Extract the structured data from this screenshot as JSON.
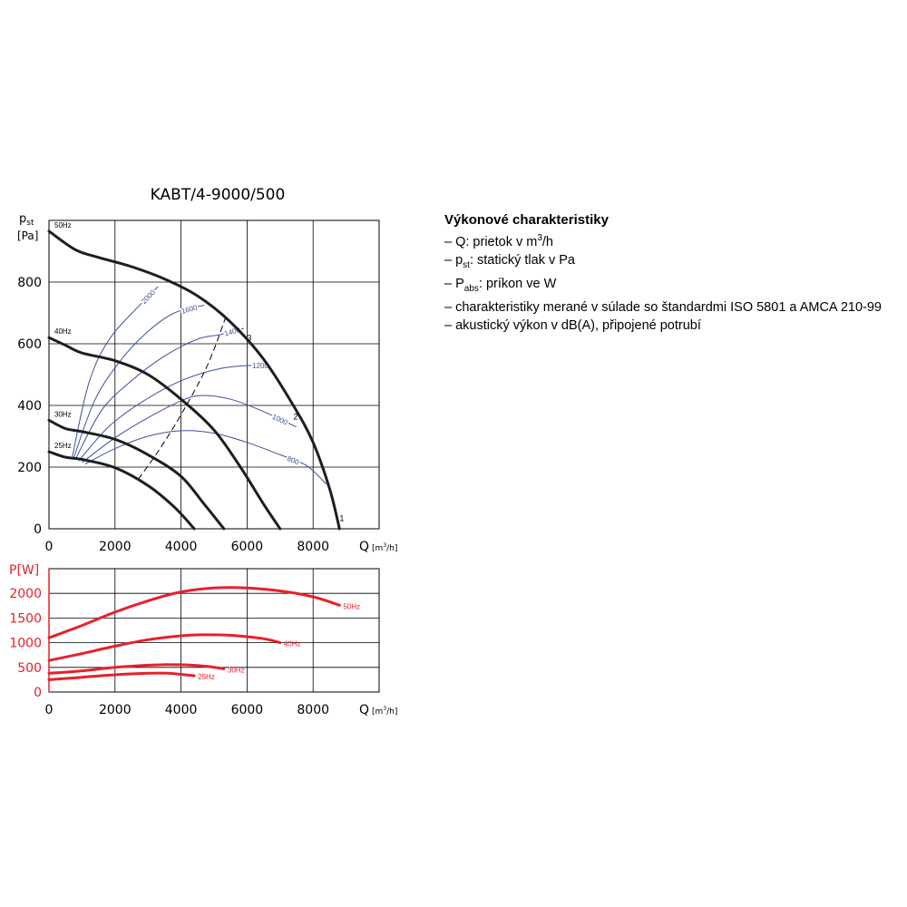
{
  "colors": {
    "main_curve": "#1e1e1e",
    "power_curve": "#e8202a",
    "isoline": "#3f4f9e",
    "grid": "#000000",
    "power_axis": "#e8202a"
  },
  "title": "KABT/4-9000/500",
  "legend": {
    "heading": "Výkonové charakteristiky",
    "items": [
      {
        "prefix": "– ",
        "symbol": "Q",
        "sub": "",
        "text_before_sup": ": prietok v m",
        "sup": "3",
        "text_after_sup": "/h"
      },
      {
        "prefix": "– ",
        "symbol": "p",
        "sub": "st",
        "text_before_sup": ": statický tlak v Pa",
        "sup": "",
        "text_after_sup": ""
      },
      {
        "prefix": "– ",
        "symbol": "P",
        "sub": "abs",
        "text_before_sup": ": príkon ve W",
        "sup": "",
        "text_after_sup": ""
      },
      {
        "prefix": "– ",
        "symbol": "",
        "sub": "",
        "text_before_sup": "charakteristiky merané v súlade so štandardmi ISO 5801 a AMCA 210-99",
        "sup": "",
        "text_after_sup": ""
      },
      {
        "prefix": "– ",
        "symbol": "",
        "sub": "",
        "text_before_sup": "akustický výkon v dB(A), připojené potrubí",
        "sup": "",
        "text_after_sup": ""
      }
    ]
  },
  "chart_data": [
    {
      "type": "line",
      "title": "KABT/4-9000/500",
      "ylabel_symbol": "p",
      "ylabel_sub": "st",
      "ylabel_unit": "[Pa]",
      "xlabel_symbol": "Q",
      "xlabel_unit_before_sup": "[m",
      "xlabel_sup": "3",
      "xlabel_unit_after_sup": "/h]",
      "xlim": [
        0,
        10000
      ],
      "ylim": [
        0,
        1000
      ],
      "xticks": [
        0,
        2000,
        4000,
        6000,
        8000
      ],
      "yticks": [
        0,
        200,
        400,
        600,
        800
      ],
      "grid": true,
      "series": [
        {
          "name": "50Hz",
          "points": [
            [
              0,
              965
            ],
            [
              800,
              905
            ],
            [
              1500,
              880
            ],
            [
              2500,
              850
            ],
            [
              3500,
              810
            ],
            [
              4500,
              755
            ],
            [
              5500,
              670
            ],
            [
              6500,
              550
            ],
            [
              7400,
              400
            ],
            [
              8000,
              280
            ],
            [
              8500,
              130
            ],
            [
              8800,
              0
            ]
          ]
        },
        {
          "name": "40Hz",
          "points": [
            [
              0,
              620
            ],
            [
              500,
              595
            ],
            [
              1000,
              570
            ],
            [
              2000,
              545
            ],
            [
              3000,
              500
            ],
            [
              4000,
              420
            ],
            [
              5000,
              320
            ],
            [
              5800,
              200
            ],
            [
              6500,
              80
            ],
            [
              7000,
              0
            ]
          ]
        },
        {
          "name": "30Hz",
          "points": [
            [
              0,
              352
            ],
            [
              500,
              325
            ],
            [
              1000,
              315
            ],
            [
              2000,
              290
            ],
            [
              3000,
              240
            ],
            [
              4000,
              170
            ],
            [
              4700,
              80
            ],
            [
              5300,
              0
            ]
          ]
        },
        {
          "name": "25Hz",
          "points": [
            [
              0,
              250
            ],
            [
              500,
              232
            ],
            [
              1000,
              225
            ],
            [
              2000,
              198
            ],
            [
              3000,
              140
            ],
            [
              3800,
              70
            ],
            [
              4400,
              0
            ]
          ]
        }
      ],
      "iso_power_lines": [
        {
          "label": "2000",
          "points": [
            [
              700,
              230
            ],
            [
              1200,
              470
            ],
            [
              1800,
              610
            ],
            [
              2700,
              720
            ],
            [
              3300,
              785
            ]
          ]
        },
        {
          "label": "1600",
          "points": [
            [
              750,
              230
            ],
            [
              1400,
              420
            ],
            [
              2200,
              550
            ],
            [
              3000,
              640
            ],
            [
              3800,
              700
            ],
            [
              4700,
              725
            ]
          ]
        },
        {
          "label": "1400",
          "points": [
            [
              800,
              225
            ],
            [
              1600,
              385
            ],
            [
              2500,
              480
            ],
            [
              3500,
              560
            ],
            [
              4500,
              615
            ],
            [
              5200,
              630
            ],
            [
              5900,
              650
            ]
          ]
        },
        {
          "label": "1200",
          "points": [
            [
              900,
              220
            ],
            [
              1800,
              330
            ],
            [
              2800,
              410
            ],
            [
              4000,
              480
            ],
            [
              5200,
              520
            ],
            [
              6200,
              530
            ],
            [
              6600,
              530
            ]
          ]
        },
        {
          "label": "1000",
          "points": [
            [
              1000,
              215
            ],
            [
              2000,
              295
            ],
            [
              3000,
              360
            ],
            [
              4000,
              415
            ],
            [
              4600,
              432
            ],
            [
              5500,
              420
            ],
            [
              6500,
              380
            ],
            [
              7500,
              330
            ]
          ]
        },
        {
          "label": "800",
          "points": [
            [
              1100,
              210
            ],
            [
              2000,
              260
            ],
            [
              3000,
              300
            ],
            [
              4000,
              318
            ],
            [
              5000,
              310
            ],
            [
              6000,
              280
            ],
            [
              7000,
              240
            ],
            [
              7800,
              205
            ],
            [
              8400,
              145
            ]
          ]
        }
      ],
      "system_line": {
        "points": [
          [
            2700,
            160
          ],
          [
            3300,
            250
          ],
          [
            4000,
            370
          ],
          [
            4800,
            530
          ],
          [
            5400,
            700
          ]
        ]
      },
      "point_labels": [
        {
          "label": "3",
          "x": 6000,
          "y": 610
        },
        {
          "label": "2",
          "x": 7400,
          "y": 355
        },
        {
          "label": "1",
          "x": 8800,
          "y": 25
        }
      ]
    },
    {
      "type": "line",
      "ylabel": "P[W]",
      "xlabel_symbol": "Q",
      "xlabel_unit_before_sup": "[m",
      "xlabel_sup": "3",
      "xlabel_unit_after_sup": "/h]",
      "xlim": [
        0,
        10000
      ],
      "ylim": [
        0,
        2500
      ],
      "xticks": [
        0,
        2000,
        4000,
        6000,
        8000
      ],
      "yticks": [
        0,
        500,
        1000,
        1500,
        2000
      ],
      "grid": true,
      "series": [
        {
          "name": "50Hz",
          "points": [
            [
              0,
              1100
            ],
            [
              1000,
              1350
            ],
            [
              2000,
              1620
            ],
            [
              3000,
              1850
            ],
            [
              4000,
              2030
            ],
            [
              5000,
              2110
            ],
            [
              6000,
              2110
            ],
            [
              7000,
              2050
            ],
            [
              8000,
              1930
            ],
            [
              8800,
              1760
            ]
          ]
        },
        {
          "name": "40Hz",
          "points": [
            [
              0,
              640
            ],
            [
              1000,
              780
            ],
            [
              2000,
              930
            ],
            [
              3000,
              1060
            ],
            [
              4000,
              1140
            ],
            [
              4600,
              1160
            ],
            [
              5500,
              1150
            ],
            [
              6500,
              1080
            ],
            [
              7000,
              1000
            ]
          ]
        },
        {
          "name": "30Hz",
          "points": [
            [
              0,
              380
            ],
            [
              1000,
              430
            ],
            [
              2000,
              500
            ],
            [
              3000,
              545
            ],
            [
              3500,
              555
            ],
            [
              4200,
              550
            ],
            [
              4800,
              520
            ],
            [
              5300,
              470
            ]
          ]
        },
        {
          "name": "25Hz",
          "points": [
            [
              0,
              250
            ],
            [
              1000,
              300
            ],
            [
              2000,
              350
            ],
            [
              3000,
              380
            ],
            [
              3600,
              380
            ],
            [
              4400,
              330
            ]
          ]
        }
      ]
    }
  ]
}
